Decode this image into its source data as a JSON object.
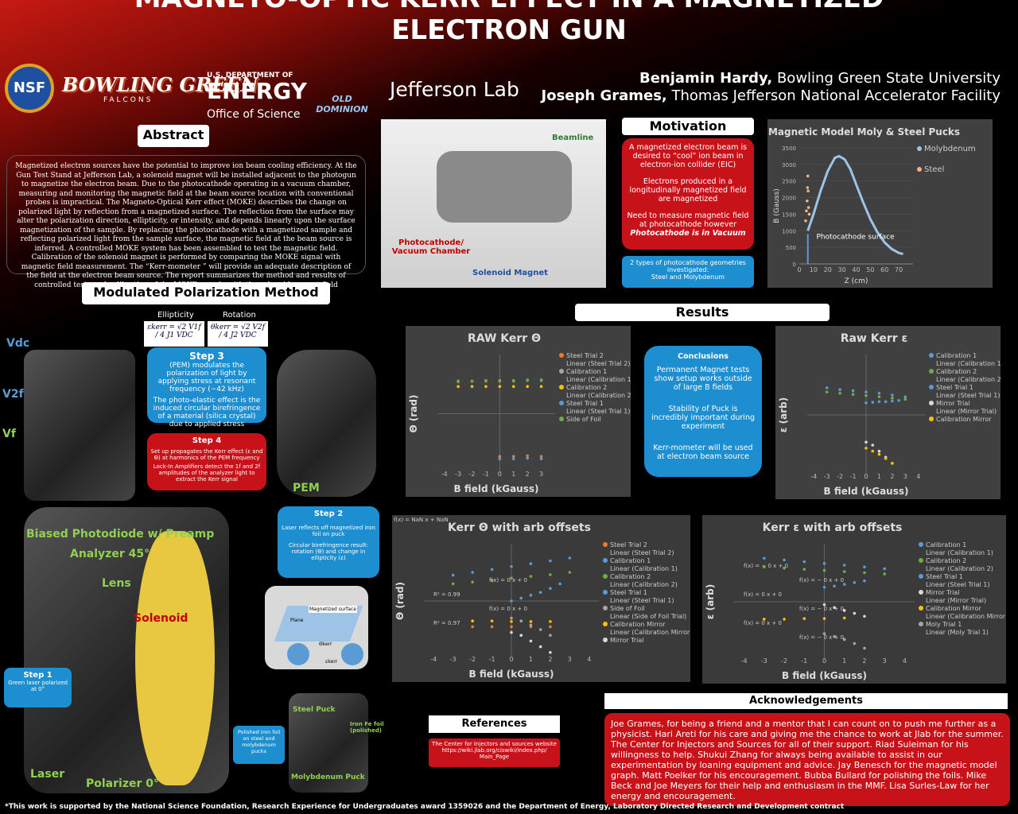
{
  "header": {
    "title": "MAGNETO-OPTIC KERR EFFECT IN A MAGNETIZED ELECTRON GUN",
    "authors": [
      {
        "name": "Benjamin Hardy,",
        "affiliation": "Bowling Green State University"
      },
      {
        "name": "Joseph Grames,",
        "affiliation": "Thomas Jefferson National Accelerator Facility"
      }
    ],
    "logos": {
      "nsf": "NSF",
      "bgsu": "BOWLING GREEN",
      "bgsu_sub": "FALCONS",
      "doe_top": "U.S. DEPARTMENT OF",
      "doe": "ENERGY",
      "doe_sub": "Office of Science",
      "odu": "OLD DOMINION",
      "jlab": "Jefferson Lab"
    }
  },
  "abstract": {
    "heading": "Abstract",
    "text": "Magnetized electron sources have the potential to improve ion beam cooling efficiency. At the Gun Test Stand at Jefferson Lab, a solenoid magnet will be installed adjacent to the photogun to magnetize the electron beam. Due to the photocathode operating in a vacuum chamber, measuring and monitoring the magnetic field at the beam source location with conventional probes is impractical. The Magneto-Optical Kerr effect (MOKE) describes the change on polarized light by reflection from a magnetized surface. The reflection from the surface may alter the polarization direction, ellipticity, or intensity, and depends linearly upon the surface magnetization of the sample. By replacing the photocathode with a magnetized sample and reflecting polarized light from the sample surface, the magnetic field at the beam source is inferred. A controlled MOKE system has been assembled to test the magnetic field. Calibration of the solenoid magnet is performed by comparing the MOKE signal with magnetic field measurement. The “Kerr-mometer ” will provide an adequate description of the field at the electron beam source. The report summarizes the method and results of controlled tests and calibration of the MOKE sample with the solenoid magnet field measurements."
  },
  "method": {
    "heading": "Modulated Polarization Method",
    "ellipticity": "Ellipticity",
    "rotation": "Rotation",
    "eq_ellipticity": "εkerr = √2 V1f / 4 J1 VDC",
    "eq_rotation": "θkerr = √2 V2f / 4 J2 VDC",
    "voltages": [
      "Vdc",
      "V2f",
      "Vf"
    ],
    "step3": {
      "heading": "Step 3",
      "lines": [
        "(PEM) modulates the polarization of light by applying stress at resonant frequency (~42 kHz)",
        "The photo-elastic effect is the induced circular birefringence of a material (silica crystal) due to applied stress"
      ]
    },
    "step4": {
      "heading": "Step 4",
      "lines": [
        "Set up propagates the Kerr effect (ε and Θ) at harmonics of the PEM frequency",
        "Lock-In Amplifiers detect the 1f and 2f amplitudes of the analyzer light to extract the Kerr signal"
      ]
    },
    "step2": {
      "heading": "Step 2",
      "lines": [
        "Laser reflects off magnetized iron foil on puck",
        "Circular birefringence result: rotation (Θ) and change in ellipticity (ε)"
      ]
    },
    "step1": {
      "heading": "Step 1",
      "lines": [
        "Green laser polarized at 0°"
      ]
    },
    "pem": "PEM",
    "labels": [
      "Biased Photodiode w/ Preamp",
      "Analyzer 45°",
      "Lens",
      "Solenoid",
      "Laser",
      "Polarizer 0°"
    ],
    "diagram": {
      "surface": "Magnetized surface",
      "plane": "Plane",
      "theta": "Θkerr",
      "eps": "εkerr"
    },
    "pucks": {
      "caption": "Polished iron foil on steel and molybdenum pucks",
      "steel": "Steel Puck",
      "foil": "Iron Fe foil (polished)",
      "moly": "Molybdenum Puck"
    }
  },
  "setup_photo": {
    "beamline": "Beamline",
    "chamber": "Photocathode/ Vacuum Chamber",
    "magnet": "Solenoid Magnet"
  },
  "motivation": {
    "heading": "Motivation",
    "paragraphs": [
      "A magnetized electron beam is desired to “cool” ion beam in electron-ion collider (EIC)",
      "Electrons produced in a longitudinally magnetized field are magnetized",
      "Need to measure magnetic field at photocathode however"
    ],
    "emphasis": "Photocathode is in Vacuum",
    "geometries": [
      "2 types of photocathode geometries investigated:",
      "Steel and Molybdenum"
    ]
  },
  "results": {
    "heading": "Results"
  },
  "conclusions": {
    "heading": "Conclusions",
    "items": [
      "Permanent Magnet tests show setup works outside of large B fields",
      "Stability of Puck is incredibly important during experiment",
      "Kerr-mometer will be used at electron beam source"
    ]
  },
  "references": {
    "heading": "References",
    "text": "The Center for Injectors and sources website https://wiki.jlab.org/ciswiki/index.php/ Main_Page"
  },
  "acknowledgments": {
    "heading": "Acknowledgements",
    "text": "Joe Grames, for being a friend and a mentor that I can count on to push me further as a physicist. Hari Areti for his care and giving me the chance to work at Jlab for the summer. The Center for Injectors and Sources for all of their support. Riad Suleiman for his willingness to help. Shukui Zhang for always being available to assist in our experimentation by loaning equipment and advice. Jay Benesch for the magnetic model graph. Matt Poelker for his encouragement. Bubba Bullard for polishing the foils. Mike Beck and Joe Meyers for their help and enthusiasm in the MMF. Lisa Surles-Law for her energy and encouragement."
  },
  "footer": "*This work is supported by the National Science Foundation, Research Experience for Undergraduates award 1359026 and the Department of Energy, Laboratory Directed Research and Development contract",
  "chart_data": [
    {
      "type": "line",
      "title": "Magnetic Model Moly & Steel Pucks",
      "x_label": "Z (cm)",
      "y_label": "B (Gauss)",
      "xlim": [
        0,
        80
      ],
      "ylim": [
        0,
        3500
      ],
      "xticks": [
        0,
        10,
        20,
        30,
        40,
        50,
        60,
        70
      ],
      "yticks": [
        0,
        500,
        1000,
        1500,
        2000,
        2500,
        3000,
        3500
      ],
      "annotation": "Photocathode surface",
      "series": [
        {
          "name": "Molybdenum",
          "color": "#9dc3e6",
          "style": "line",
          "x": [
            6,
            10,
            15,
            20,
            25,
            28,
            32,
            36,
            40,
            45,
            50,
            55,
            60,
            65,
            70,
            73
          ],
          "values": [
            1000,
            1500,
            2200,
            2800,
            3200,
            3250,
            3150,
            2850,
            2400,
            1850,
            1350,
            950,
            650,
            450,
            330,
            300
          ]
        },
        {
          "name": "Steel",
          "color": "#f4b183",
          "style": "scatter",
          "x": [
            4.5,
            5,
            5.5,
            5.8,
            6,
            6.2,
            6.5,
            7
          ],
          "values": [
            1300,
            1600,
            1900,
            2300,
            2650,
            2200,
            1700,
            1500
          ]
        }
      ]
    },
    {
      "type": "scatter",
      "title": "RAW Kerr Θ",
      "x_label": "B field (kGauss)",
      "y_label": "Θ (rad)",
      "xlim": [
        -4.5,
        4
      ],
      "ylim": [
        -1,
        1
      ],
      "xticks": [
        -4,
        -3,
        -2,
        -1,
        0,
        1,
        2,
        3
      ],
      "series": [
        {
          "name": "Steel Trial 2",
          "trend": "Linear (Steel Trial 2)",
          "color": "#ed7d31",
          "x": [
            0,
            1,
            2,
            3
          ],
          "values": [
            -0.72,
            -0.72,
            -0.71,
            -0.72
          ]
        },
        {
          "name": "Calibration 1",
          "trend": "Linear (Calibration 1)",
          "color": "#a5a5a5",
          "x": [
            -3,
            -2,
            -1,
            0,
            1,
            2,
            3
          ],
          "values": [
            0.55,
            0.55,
            0.56,
            0.56,
            0.56,
            0.57,
            0.57
          ]
        },
        {
          "name": "Calibration 2",
          "trend": "Linear (Calibration 2)",
          "color": "#ffc000",
          "x": [
            -3,
            -2,
            -1,
            0,
            1,
            2,
            3
          ],
          "values": [
            0.46,
            0.46,
            0.46,
            0.46,
            0.46,
            0.46,
            0.46
          ]
        },
        {
          "name": "Steel Trial 1",
          "trend": "Linear (Steel Trial 1)",
          "color": "#5b9bd5",
          "x": [
            0,
            1,
            2,
            3
          ],
          "values": [
            -0.76,
            -0.76,
            -0.75,
            -0.76
          ]
        },
        {
          "name": "Side of Foil",
          "color": "#70ad47",
          "x": [
            -3,
            -2,
            -1,
            0,
            1,
            2,
            3
          ],
          "values": [
            0.54,
            0.55,
            0.55,
            0.55,
            0.55,
            0.56,
            0.56
          ]
        }
      ]
    },
    {
      "type": "scatter",
      "title": "Raw Kerr ε",
      "x_label": "B field (kGauss)",
      "y_label": "ε (arb)",
      "xlim": [
        -4.5,
        4.5
      ],
      "ylim": [
        -1,
        1
      ],
      "xticks": [
        -4,
        -3,
        -2,
        -1,
        0,
        1,
        2,
        3,
        4
      ],
      "series": [
        {
          "name": "Calibration 1",
          "trend": "Linear (Calibration 1)",
          "color": "#5b9bd5",
          "x": [
            -3,
            -2,
            -1,
            0,
            1,
            2,
            3
          ],
          "values": [
            0.45,
            0.42,
            0.4,
            0.38,
            0.36,
            0.33,
            0.3
          ]
        },
        {
          "name": "Calibration 2",
          "trend": "Linear (Calibration 2)",
          "color": "#70ad47",
          "x": [
            -3,
            -2,
            -1,
            0,
            1,
            2,
            3
          ],
          "values": [
            0.38,
            0.36,
            0.34,
            0.32,
            0.3,
            0.28,
            0.26
          ]
        },
        {
          "name": "Steel Trial 1",
          "trend": "Linear (Steel Trial 1)",
          "color": "#5b9bd5",
          "x": [
            0,
            0.5,
            1,
            1.5,
            2,
            2.5
          ],
          "values": [
            0.2,
            0.21,
            0.22,
            0.22,
            0.23,
            0.24
          ]
        },
        {
          "name": "Mirror Trial",
          "trend": "Linear (Mirror Trial)",
          "color": "#d9d9d9",
          "x": [
            0,
            0.5,
            1,
            1.5,
            2
          ],
          "values": [
            -0.45,
            -0.5,
            -0.6,
            -0.7,
            -0.8
          ]
        },
        {
          "name": "Calibration Mirror",
          "color": "#ffc000",
          "x": [
            0,
            0.5,
            1,
            1.5,
            2
          ],
          "values": [
            -0.55,
            -0.6,
            -0.65,
            -0.72,
            -0.8
          ]
        }
      ]
    },
    {
      "type": "scatter",
      "title": "Kerr Θ with arb offsets",
      "x_label": "B field (kGauss)",
      "y_label": "Θ (rad)",
      "xlim": [
        -4.5,
        4.5
      ],
      "ylim": [
        -1,
        1
      ],
      "xticks": [
        -4,
        -3,
        -2,
        -1,
        0,
        1,
        2,
        3,
        4
      ],
      "annotations": [
        "f(x) = NaN x + NaN",
        "f(x) = 0 x + 0",
        "R² = 0.99",
        "f(x) = 0 x + 0",
        "R² = 0.97"
      ],
      "series": [
        {
          "name": "Steel Trial 2",
          "trend": "Linear (Steel Trial 2)",
          "color": "#ed7d31",
          "x": [
            -2,
            -1,
            0,
            1,
            2
          ],
          "values": [
            -0.45,
            -0.45,
            -0.45,
            -0.45,
            -0.45
          ]
        },
        {
          "name": "Calibration 1",
          "trend": "Linear (Calibration 1)",
          "color": "#5b9bd5",
          "x": [
            -3,
            -2,
            -1,
            0,
            1,
            2,
            3
          ],
          "values": [
            0.45,
            0.5,
            0.55,
            0.6,
            0.65,
            0.7,
            0.75
          ]
        },
        {
          "name": "Calibration 2",
          "trend": "Linear (Calibration 2)",
          "color": "#70ad47",
          "x": [
            -3,
            -2,
            -1,
            0,
            1,
            2,
            3
          ],
          "values": [
            0.3,
            0.33,
            0.36,
            0.4,
            0.43,
            0.46,
            0.5
          ]
        },
        {
          "name": "Steel Trial 1",
          "trend": "Linear (Steel Trial 1)",
          "color": "#5b9bd5",
          "x": [
            0,
            0.5,
            1,
            1.5,
            2,
            2.5
          ],
          "values": [
            0,
            0.05,
            0.1,
            0.15,
            0.22,
            0.3
          ]
        },
        {
          "name": "Side of Foil",
          "trend": "Linear (Side of Foil Trial)",
          "color": "#a5a5a5",
          "x": [
            0,
            0.5,
            1,
            1.5,
            2
          ],
          "values": [
            -0.3,
            -0.35,
            -0.42,
            -0.5,
            -0.6
          ]
        },
        {
          "name": "Calibration Mirror",
          "trend": "Linear (Calibration Mirror)",
          "color": "#ffc000",
          "x": [
            -2,
            -1,
            0,
            1,
            2
          ],
          "values": [
            -0.35,
            -0.35,
            -0.36,
            -0.36,
            -0.36
          ]
        },
        {
          "name": "Mirror Trial",
          "color": "#d9d9d9",
          "x": [
            0,
            0.5,
            1,
            1.5,
            2
          ],
          "values": [
            -0.55,
            -0.6,
            -0.7,
            -0.8,
            -0.9
          ]
        }
      ]
    },
    {
      "type": "scatter",
      "title": "Kerr ε with arb offsets",
      "x_label": "B field (kGauss)",
      "y_label": "ε (arb)",
      "xlim": [
        -4.5,
        4.5
      ],
      "ylim": [
        -1,
        1
      ],
      "xticks": [
        -4,
        -3,
        -2,
        -1,
        0,
        1,
        2,
        3,
        4
      ],
      "annotations": [
        "f(x) = − 0 x + 0",
        "f(x) = − 0 x + 0",
        "f(x) = 0 x + 0",
        "f(x) = − 0 x + 0",
        "f(x) = 0 x + 0",
        "f(x) = − 0 x + 0"
      ],
      "series": [
        {
          "name": "Calibration 1",
          "trend": "Linear (Calibration 1)",
          "color": "#5b9bd5",
          "x": [
            -3,
            -2,
            -1,
            0,
            1,
            2,
            3
          ],
          "values": [
            0.75,
            0.72,
            0.69,
            0.66,
            0.63,
            0.6,
            0.57
          ]
        },
        {
          "name": "Calibration 2",
          "trend": "Linear (Calibration 2)",
          "color": "#70ad47",
          "x": [
            -3,
            -2,
            -1,
            0,
            1,
            2,
            3
          ],
          "values": [
            0.6,
            0.58,
            0.56,
            0.54,
            0.52,
            0.5,
            0.48
          ]
        },
        {
          "name": "Steel Trial 1",
          "trend": "Linear (Steel Trial 1)",
          "color": "#5b9bd5",
          "x": [
            0,
            0.5,
            1,
            1.5,
            2
          ],
          "values": [
            0.25,
            0.27,
            0.3,
            0.33,
            0.36
          ]
        },
        {
          "name": "Mirror Trial",
          "trend": "Linear (Mirror Trial)",
          "color": "#d9d9d9",
          "x": [
            0,
            0.5,
            1,
            1.5,
            2
          ],
          "values": [
            -0.05,
            -0.1,
            -0.15,
            -0.2,
            -0.25
          ]
        },
        {
          "name": "Calibration Mirror",
          "trend": "Linear (Calibration Mirror)",
          "color": "#ffc000",
          "x": [
            -3,
            -2,
            -1,
            0,
            1
          ],
          "values": [
            -0.3,
            -0.3,
            -0.29,
            -0.29,
            -0.28
          ]
        },
        {
          "name": "Moly Trial 1",
          "trend": "Linear (Moly Trial 1)",
          "color": "#a5a5a5",
          "x": [
            0,
            0.5,
            1,
            1.5,
            2
          ],
          "values": [
            -0.55,
            -0.6,
            -0.65,
            -0.72,
            -0.8
          ]
        }
      ]
    }
  ]
}
